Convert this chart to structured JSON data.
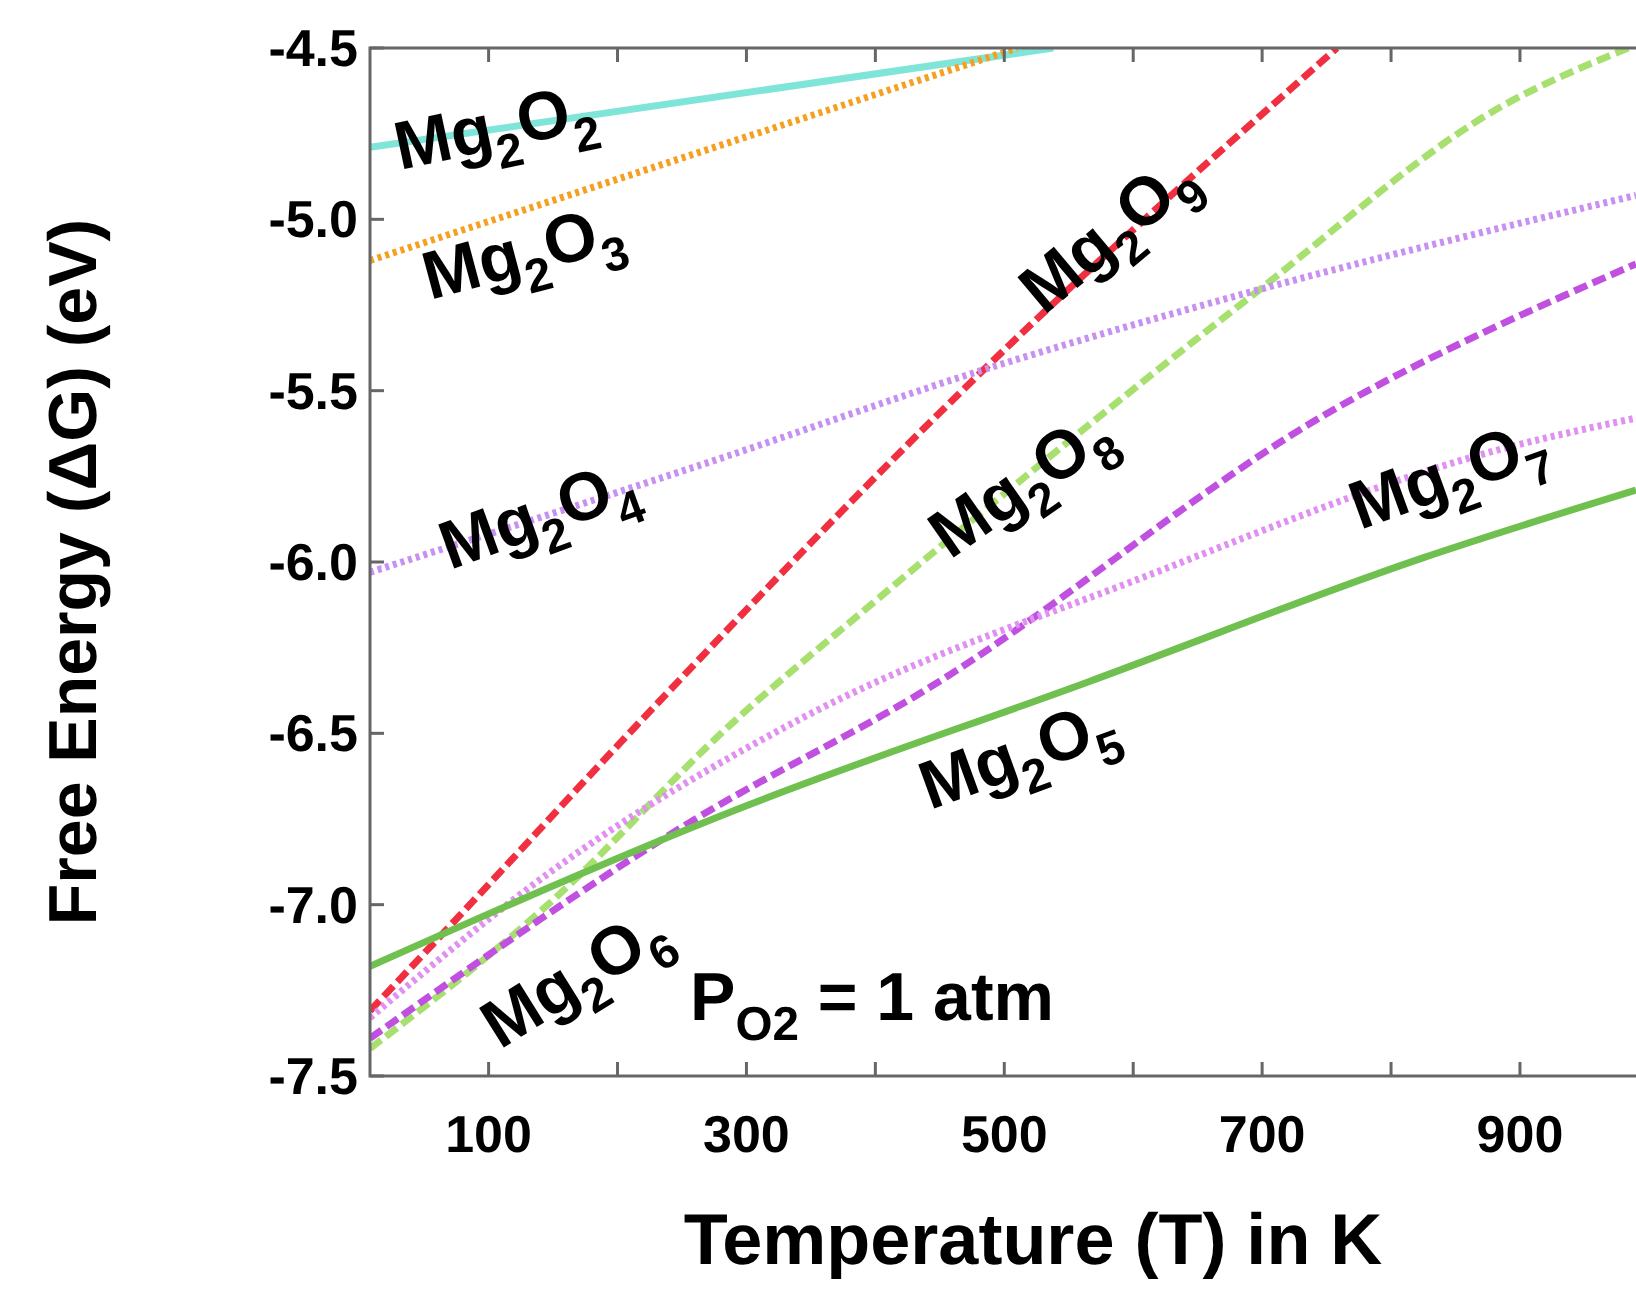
{
  "chart_data": {
    "type": "line",
    "xlabel": "Temperature (T) in K",
    "ylabel": "Free Energy (ΔG) (eV)",
    "xlim": [
      8,
      990
    ],
    "ylim": [
      -7.5,
      -4.5
    ],
    "xticks": [
      100,
      {
        "value": 200,
        "label": null
      },
      300,
      {
        "value": 400,
        "label": null
      },
      500,
      {
        "value": 600,
        "label": null
      },
      700,
      {
        "value": 800,
        "label": null
      },
      900
    ],
    "yticks": [
      -7.5,
      {
        "value": -7,
        "label": "-7.0"
      },
      -6.5,
      {
        "value": -6,
        "label": "-6.0"
      },
      -5.5,
      {
        "value": -5,
        "label": "-5.0"
      },
      -4.5
    ],
    "grid": false,
    "marker": "none",
    "series": [
      {
        "name": "Mg$_{2}$O$_{2}$",
        "color": "#7fe5d8",
        "line_style": "solid",
        "x": [
          8,
          538
        ],
        "values": [
          -4.79,
          -4.5
        ]
      },
      {
        "name": "Mg$_{2}$O$_{3}$",
        "color": "#f5a020",
        "line_style": "dotted",
        "x": [
          8,
          510
        ],
        "values": [
          -5.12,
          -4.5
        ]
      },
      {
        "name": "Mg$_{2}$O$_{9}$",
        "color": "#f03040",
        "line_style": "dashed",
        "x": [
          8,
          78,
          214,
          481,
          758
        ],
        "values": [
          -7.31,
          -7.03,
          -6.48,
          -5.45,
          -4.5
        ]
      },
      {
        "name": "Mg$_{2}$O$_{8}$",
        "color": "#a8e070",
        "line_style": "dashed",
        "x": [
          8,
          146,
          289,
          398,
          693,
          886,
          984
        ],
        "values": [
          -7.42,
          -7.0,
          -6.47,
          -6.12,
          -5.22,
          -4.67,
          -4.5
        ]
      },
      {
        "name": "Mg$_{2}$O$_{4}$",
        "color": "#c890f0",
        "line_style": "dotted",
        "x": [
          8,
          262,
          500,
          693,
          990
        ],
        "values": [
          -6.03,
          -5.72,
          -5.42,
          -5.21,
          -4.93
        ]
      },
      {
        "name": "Mg$_{2}$O$_{6}$",
        "color": "#c050e0",
        "line_style": "dashed",
        "x": [
          8,
          256,
          436,
          758,
          990
        ],
        "values": [
          -7.39,
          -6.76,
          -6.38,
          -5.55,
          -5.13
        ]
      },
      {
        "name": "Mg$_{2}$O$_{7}$",
        "color": "#e090f0",
        "line_style": "dotted",
        "x": [
          8,
          146,
          346,
          604,
          886,
          990
        ],
        "values": [
          -7.33,
          -6.91,
          -6.45,
          -6.05,
          -5.67,
          -5.58
        ]
      },
      {
        "name": "Mg$_{2}$O$_{5}$",
        "color": "#70c050",
        "line_style": "solid",
        "x": [
          8,
          294,
          565,
          823,
          990
        ],
        "values": [
          -7.18,
          -6.72,
          -6.35,
          -5.99,
          -5.79
        ]
      }
    ],
    "annotations": [
      "P$_{O2}$ = 1 atm"
    ]
  }
}
